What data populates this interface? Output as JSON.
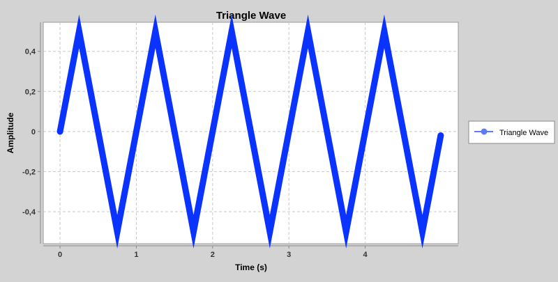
{
  "chart_data": {
    "type": "line",
    "title": "Triangle Wave",
    "xlabel": "Time (s)",
    "ylabel": "Amplitude",
    "xlim": [
      -0.22,
      5.22
    ],
    "ylim": [
      -0.56,
      0.545
    ],
    "x_ticks": [
      0,
      1,
      2,
      3,
      4
    ],
    "x_tick_labels": [
      "0",
      "1",
      "2",
      "3",
      "4"
    ],
    "y_ticks": [
      -0.4,
      -0.2,
      0,
      0.2,
      0.4
    ],
    "y_tick_labels": [
      "-0,4",
      "-0,2",
      "0",
      "0,2",
      "0,4"
    ],
    "grid": true,
    "legend_position": "right",
    "series": [
      {
        "name": "Triangle Wave",
        "color": "#0b33ff",
        "x": [
          0,
          0.25,
          0.75,
          1.25,
          1.75,
          2.25,
          2.75,
          3.25,
          3.75,
          4.25,
          4.75,
          4.99
        ],
        "y": [
          0,
          0.5,
          -0.5,
          0.5,
          -0.5,
          0.5,
          -0.5,
          0.5,
          -0.5,
          0.5,
          -0.5,
          -0.02
        ]
      }
    ]
  },
  "colors": {
    "background": "#d3d3d3",
    "plot_background": "#ffffff",
    "grid": "#c8c8c8",
    "axis": "#888888",
    "legend_line": "#5b7bf5"
  }
}
